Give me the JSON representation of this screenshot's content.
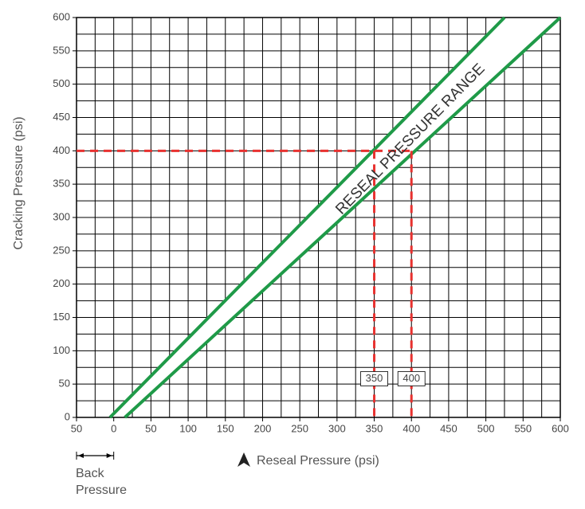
{
  "chart_data": {
    "type": "line",
    "x_label": "Reseal Pressure (psi)",
    "y_label": "Cracking Pressure (psi)",
    "xlim": [
      -50,
      600
    ],
    "ylim": [
      0,
      600
    ],
    "xticks": [
      {
        "value": -50,
        "label": "50"
      },
      0,
      50,
      100,
      150,
      200,
      250,
      300,
      350,
      400,
      450,
      500,
      550,
      600
    ],
    "yticks": [
      0,
      50,
      100,
      150,
      200,
      250,
      300,
      350,
      400,
      450,
      500,
      550,
      600
    ],
    "grid": true,
    "minor_grid_step": 25,
    "band_fill": "#ffffff",
    "series": [
      {
        "color": "#1f9a48",
        "x": [
          -5,
          525
        ],
        "values": [
          0,
          600
        ]
      },
      {
        "color": "#1f9a48",
        "x": [
          15,
          600
        ],
        "values": [
          0,
          600
        ]
      },
      {
        "color": "#e8312f",
        "dashed": true,
        "x": [
          -50,
          400
        ],
        "values": [
          400,
          400
        ]
      },
      {
        "color": "#e8312f",
        "dashed": true,
        "x": [
          350,
          350
        ],
        "values": [
          400,
          0
        ]
      },
      {
        "color": "#e8312f",
        "dashed": true,
        "x": [
          400,
          400
        ],
        "values": [
          400,
          0
        ]
      }
    ],
    "annotations": [
      {
        "text": "RESEAL PRESSURE RANGE",
        "x": 399,
        "y": 417
      },
      {
        "text": "350",
        "x": 350,
        "y": 58
      },
      {
        "text": "400",
        "x": 400,
        "y": 58
      }
    ],
    "back_pressure_label": "Back Pressure"
  }
}
